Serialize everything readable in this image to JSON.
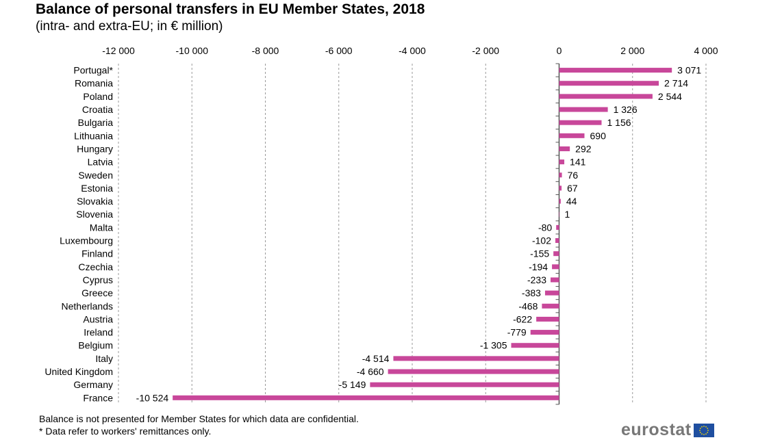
{
  "chart_data": {
    "type": "bar",
    "orientation": "horizontal",
    "title": "Balance of personal transfers in EU Member States, 2018",
    "subtitle": "(intra- and extra-EU; in € million)",
    "categories": [
      "Portugal*",
      "Romania",
      "Poland",
      "Croatia",
      "Bulgaria",
      "Lithuania",
      "Hungary",
      "Latvia",
      "Sweden",
      "Estonia",
      "Slovakia",
      "Slovenia",
      "Malta",
      "Luxembourg",
      "Finland",
      "Czechia",
      "Cyprus",
      "Greece",
      "Netherlands",
      "Austria",
      "Ireland",
      "Belgium",
      "Italy",
      "United Kingdom",
      "Germany",
      "France"
    ],
    "values": [
      3071,
      2714,
      2544,
      1326,
      1156,
      690,
      292,
      141,
      76,
      67,
      44,
      1,
      -80,
      -102,
      -155,
      -194,
      -233,
      -383,
      -468,
      -622,
      -779,
      -1305,
      -4514,
      -4660,
      -5149,
      -10524
    ],
    "data_labels": [
      "3 071",
      "2 714",
      "2 544",
      "1 326",
      "1 156",
      "690",
      "292",
      "141",
      "76",
      "67",
      "44",
      "1",
      "-80",
      "-102",
      "-155",
      "-194",
      "-233",
      "-383",
      "-468",
      "-622",
      "-779",
      "-1 305",
      "-4 514",
      "-4 660",
      "-5 149",
      "-10 524"
    ],
    "xlim": [
      -12000,
      4000
    ],
    "x_ticks": [
      -12000,
      -10000,
      -8000,
      -6000,
      -4000,
      -2000,
      0,
      2000,
      4000
    ],
    "x_tick_labels": [
      "-12 000",
      "-10 000",
      "-8 000",
      "-6 000",
      "-4 000",
      "-2 000",
      "0",
      "2 000",
      "4 000"
    ],
    "axis_position": "top",
    "grid": "vertical dashed",
    "bar_color": "#c8479a"
  },
  "footnotes": [
    "Balance is not presented for Member States for which data are confidential.",
    "* Data refer to workers' remittances only."
  ],
  "logo": {
    "text": "eurostat",
    "flag_color": "#1f4fa0",
    "star_color": "#f5d800"
  }
}
